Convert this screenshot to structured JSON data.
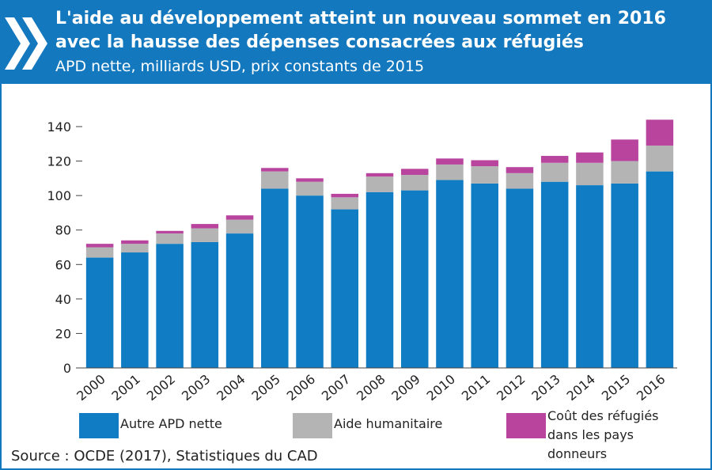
{
  "chart_data": {
    "type": "stacked_bar",
    "title": [
      "L'aide au développement atteint un nouveau sommet en 2016",
      "avec la hausse des dépenses consacrées aux réfugiés"
    ],
    "subtitle": "APD nette, milliards USD, prix constants de 2015",
    "categories": [
      "2000",
      "2001",
      "2002",
      "2003",
      "2004",
      "2005",
      "2006",
      "2007",
      "2008",
      "2009",
      "2010",
      "2011",
      "2012",
      "2013",
      "2014",
      "2015",
      "2016"
    ],
    "series": [
      {
        "name": "Autre APD nette",
        "color": "#0f7cc3",
        "values": [
          64,
          67,
          72,
          73,
          78,
          104,
          100,
          92,
          102,
          103,
          109,
          107,
          104,
          108,
          106,
          107,
          114
        ]
      },
      {
        "name": "Aide humanitaire",
        "color": "#b4b4b4",
        "values": [
          6,
          5,
          6,
          8,
          8,
          10,
          8,
          7,
          9,
          9,
          9,
          10,
          9,
          11,
          13,
          13,
          15
        ]
      },
      {
        "name": "Coût des réfugiés dans les pays donneurs",
        "color": "#b8449e",
        "values": [
          2,
          2,
          1.5,
          2.5,
          2.5,
          2,
          2,
          2,
          2,
          3.5,
          3.5,
          3.5,
          3.5,
          4,
          6,
          12.5,
          15
        ]
      }
    ],
    "ylim": [
      0,
      140
    ],
    "yticks": [
      0,
      20,
      40,
      60,
      80,
      100,
      120,
      140
    ],
    "grid": false,
    "source": "Source : OCDE (2017), Statistiques du CAD"
  }
}
